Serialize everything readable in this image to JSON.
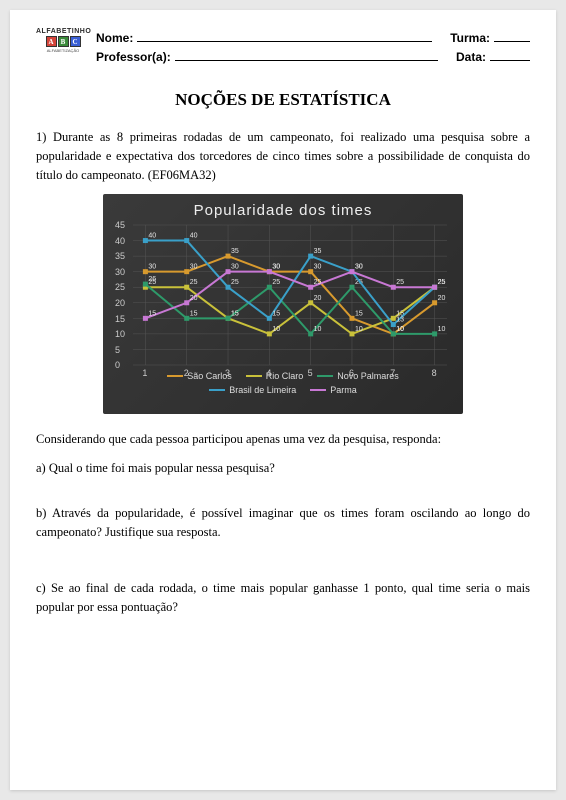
{
  "header": {
    "logo_text": "ALFABETINHO",
    "logo_sub": "ALFABETIZAÇÃO",
    "nome_label": "Nome:",
    "turma_label": "Turma:",
    "professor_label": "Professor(a):",
    "data_label": "Data:"
  },
  "title": "NOÇÕES DE ESTATÍSTICA",
  "intro": "1) Durante as 8 primeiras rodadas de um campeonato, foi realizado uma pesquisa sobre a popularidade e expectativa dos torcedores de cinco times sobre a possibilidade de conquista do título do campeonato. (EF06MA32)",
  "chart": {
    "type": "line",
    "title": "Popularidade dos times",
    "background": "#2e2e2e",
    "grid_color": "#555555",
    "text_color": "#dddddd",
    "x_categories": [
      "1",
      "2",
      "3",
      "4",
      "5",
      "6",
      "7",
      "8"
    ],
    "y_ticks": [
      0,
      5,
      10,
      15,
      20,
      25,
      30,
      35,
      40,
      45
    ],
    "ylim": [
      0,
      45
    ],
    "series": [
      {
        "name": "São Carlos",
        "color": "#d89a2e",
        "values": [
          30,
          30,
          35,
          30,
          30,
          15,
          10,
          20
        ],
        "labels": [
          "30",
          "30",
          "35",
          "30",
          "30",
          "15",
          "10",
          "20"
        ]
      },
      {
        "name": "Rio Claro",
        "color": "#c9c13a",
        "values": [
          25,
          25,
          15,
          10,
          20,
          10,
          15,
          25
        ],
        "labels": [
          "25",
          "25",
          "15",
          "10",
          "20",
          "10",
          "15",
          "25"
        ]
      },
      {
        "name": "Novo Palmares",
        "color": "#2e9a6a",
        "values": [
          26,
          15,
          15,
          25,
          10,
          25,
          10,
          10
        ],
        "labels": [
          "26",
          "15",
          "15",
          "25",
          "10",
          "25",
          "10",
          "10"
        ]
      },
      {
        "name": "Brasil de Limeira",
        "color": "#3aa0c9",
        "values": [
          40,
          40,
          25,
          15,
          35,
          30,
          13,
          25
        ],
        "labels": [
          "40",
          "40",
          "25",
          "15",
          "35",
          "30",
          "13",
          "25"
        ]
      },
      {
        "name": "Parma",
        "color": "#c878d4",
        "values": [
          15,
          20,
          30,
          30,
          25,
          30,
          25,
          25
        ],
        "labels": [
          "15",
          "20",
          "30",
          "30",
          "25",
          "30",
          "25",
          "25"
        ]
      }
    ]
  },
  "after_chart": "Considerando que cada pessoa participou apenas uma vez da pesquisa, responda:",
  "questions": {
    "a": "a) Qual o time foi mais popular nessa pesquisa?",
    "b": "b) Através da popularidade, é possível imaginar que os times foram oscilando ao longo do campeonato? Justifique sua resposta.",
    "c": "c) Se ao final de cada rodada, o time mais popular ganhasse 1 ponto, qual time seria o mais popular por essa pontuação?"
  }
}
